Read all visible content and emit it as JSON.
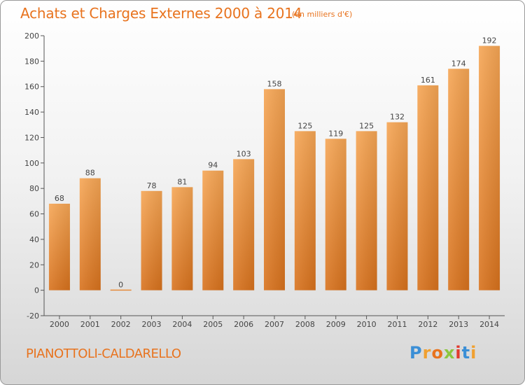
{
  "title": "Achats et Charges Externes 2000 à 2014",
  "subtitle": "(en milliers d'€)",
  "commune": "PIANOTTOLI-CALDARELLO",
  "logo": {
    "letters": [
      "P",
      "r",
      "o",
      "x",
      "i",
      "t",
      "i"
    ],
    "colors": [
      "#3b8fd6",
      "#f0a030",
      "#e8731e",
      "#8cc63f",
      "#e23b2e",
      "#3b8fd6",
      "#f0a030"
    ]
  },
  "chart_data": {
    "type": "bar",
    "categories": [
      "2000",
      "2001",
      "2002",
      "2003",
      "2004",
      "2005",
      "2006",
      "2007",
      "2008",
      "2009",
      "2010",
      "2011",
      "2012",
      "2013",
      "2014"
    ],
    "values": [
      68,
      88,
      0,
      78,
      81,
      94,
      103,
      158,
      125,
      119,
      125,
      132,
      161,
      174,
      192
    ],
    "ylim": [
      -20,
      200
    ],
    "yticks": [
      -20,
      0,
      20,
      40,
      60,
      80,
      100,
      120,
      140,
      160,
      180,
      200
    ],
    "grid": false,
    "bar_color": "#f0963a",
    "title": "Achats et Charges Externes 2000 à 2014",
    "xlabel": "",
    "ylabel": ""
  }
}
